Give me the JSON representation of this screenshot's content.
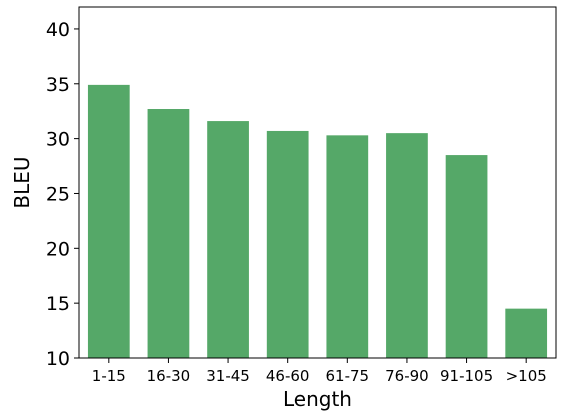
{
  "chart_data": {
    "type": "bar",
    "categories": [
      "1-15",
      "16-30",
      "31-45",
      "46-60",
      "61-75",
      "76-90",
      "91-105",
      ">105"
    ],
    "values": [
      34.9,
      32.7,
      31.6,
      30.7,
      30.3,
      30.5,
      28.5,
      14.5
    ],
    "title": "",
    "xlabel": "Length",
    "ylabel": "BLEU",
    "ylim": [
      10,
      42
    ],
    "yticks": [
      10,
      15,
      20,
      25,
      30,
      35,
      40
    ],
    "bar_color": "#55a868",
    "grid": false,
    "legend": "none"
  }
}
